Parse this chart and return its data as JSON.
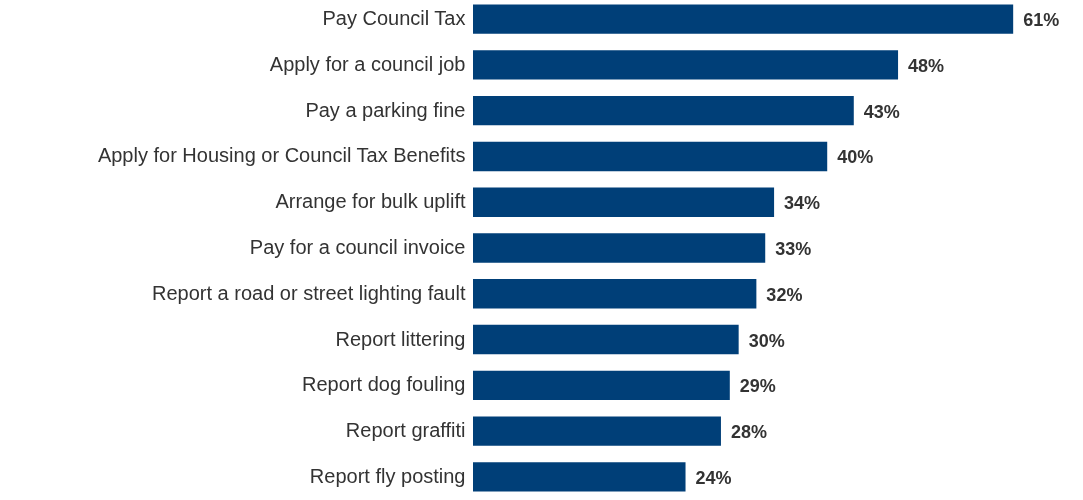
{
  "chart_data": {
    "type": "bar",
    "orientation": "horizontal",
    "categories": [
      "Pay Council Tax",
      "Apply for a council job",
      "Pay a parking fine",
      "Apply for Housing or Council Tax Benefits",
      "Arrange for bulk uplift",
      "Pay for a council invoice",
      "Report a road or street lighting fault",
      "Report littering",
      "Report dog fouling",
      "Report graffiti",
      "Report fly posting"
    ],
    "values": [
      61,
      48,
      43,
      40,
      34,
      33,
      32,
      30,
      29,
      28,
      24
    ],
    "value_labels": [
      "61%",
      "48%",
      "43%",
      "40%",
      "34%",
      "33%",
      "32%",
      "30%",
      "29%",
      "28%",
      "24%"
    ],
    "color": "#003f78",
    "grid": false
  }
}
